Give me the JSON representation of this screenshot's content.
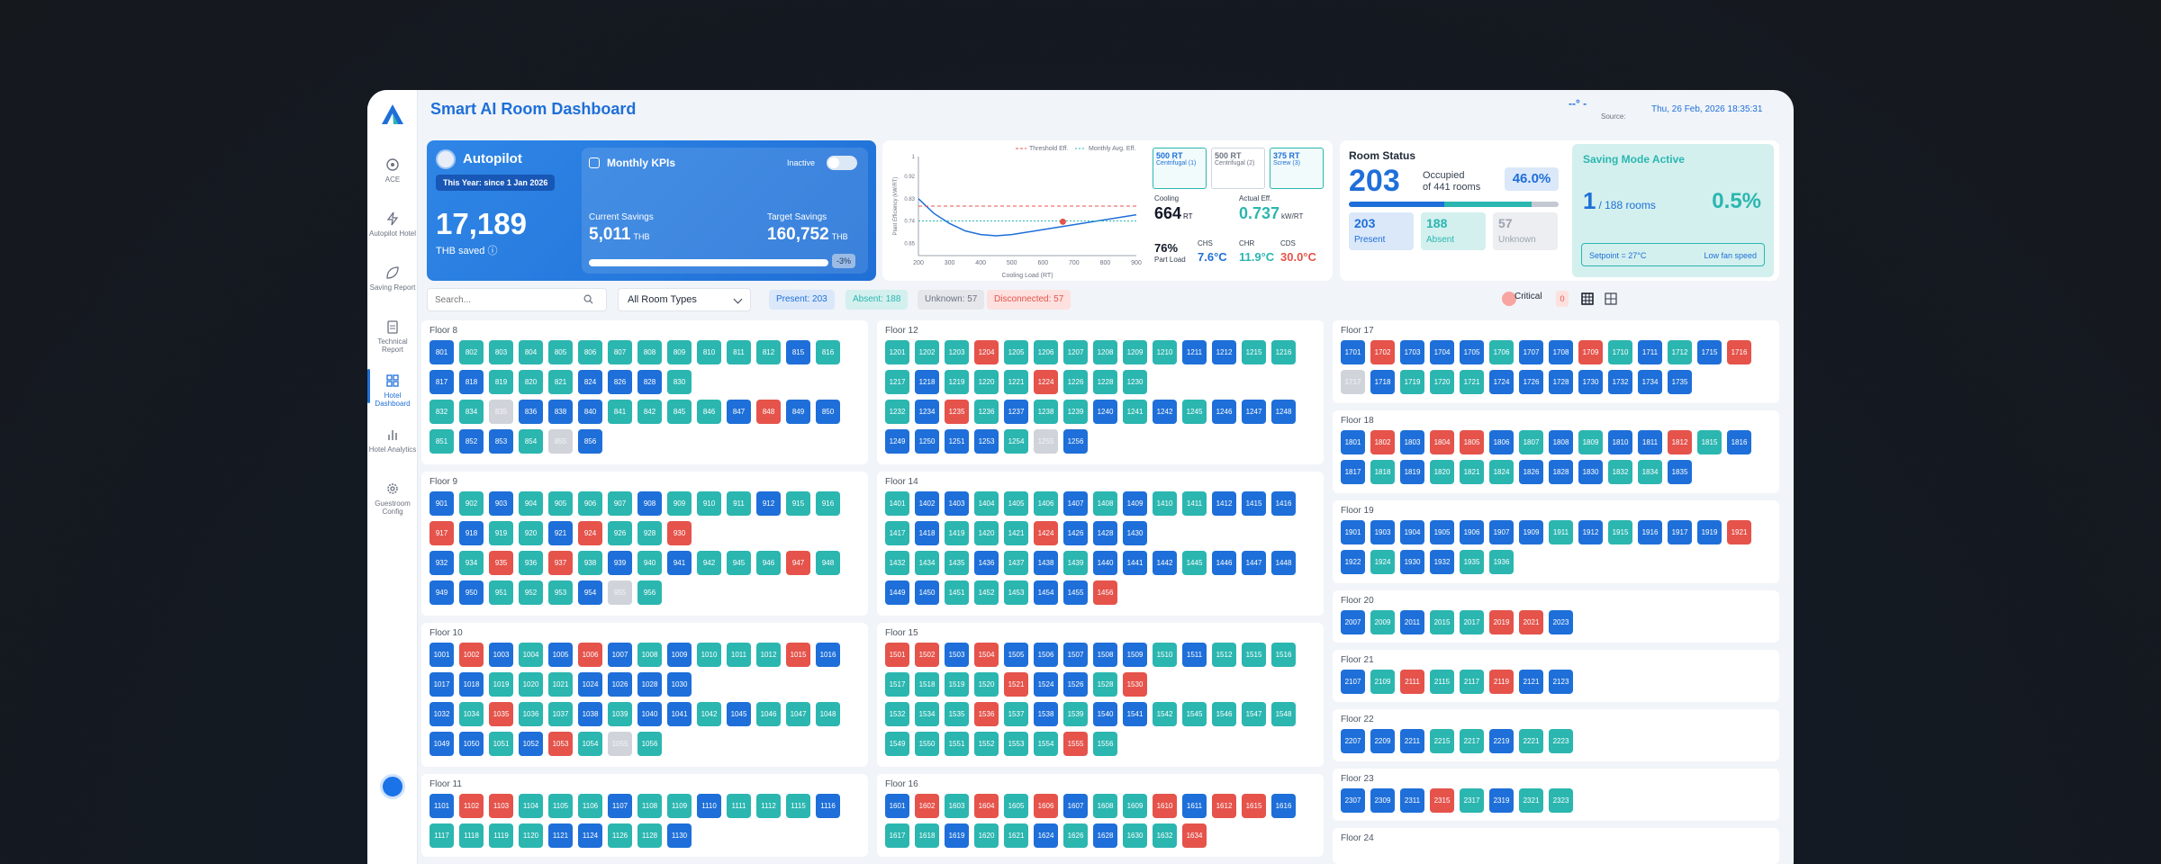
{
  "app": {
    "title": "Smart AI Room Dashboard"
  },
  "sidebar": {
    "items": [
      {
        "key": "ace",
        "label": "ACE",
        "icon": "ace-icon",
        "active": false
      },
      {
        "key": "autopilot-hotel",
        "label": "Autopilot Hotel",
        "icon": "lightning-icon",
        "active": false
      },
      {
        "key": "saving-report",
        "label": "Saving Report",
        "icon": "leaf-icon",
        "active": false
      },
      {
        "key": "technical-report",
        "label": "Technical Report",
        "icon": "clipboard-icon",
        "active": false
      },
      {
        "key": "hotel-dashboard",
        "label": "Hotel Dashboard",
        "icon": "grid-icon",
        "active": true
      },
      {
        "key": "hotel-analytics",
        "label": "Hotel Analytics",
        "icon": "bar-chart-icon",
        "active": false
      },
      {
        "key": "guestroom-config",
        "label": "Guestroom Config",
        "icon": "gear-icon",
        "active": false
      }
    ]
  },
  "header": {
    "status": "--° -",
    "source": "Source:",
    "datetime": "Thu, 26 Feb, 2026   18:35:31"
  },
  "autopilot": {
    "title": "Autopilot",
    "period": "This Year: since 1 Jan 2026",
    "saved_value": "17,189",
    "saved_label": "THB saved",
    "kpi": {
      "title": "Monthly KPIs",
      "toggle_label": "Inactive",
      "current_label": "Current Savings",
      "current_value": "5,011",
      "current_unit": "THB",
      "target_label": "Target Savings",
      "target_value": "160,752",
      "target_unit": "THB",
      "progress": 0.031,
      "badge": "-3%"
    }
  },
  "efficiency": {
    "legend_threshold": "Threshold Eff.",
    "legend_avg": "Monthly Avg. Eff.",
    "chillers": [
      {
        "rt": "500 RT",
        "type": "Centrifugal (1)",
        "selected": true
      },
      {
        "rt": "500 RT",
        "type": "Centrifugal (2)",
        "selected": false
      },
      {
        "rt": "375 RT",
        "type": "Screw (3)",
        "selected": true
      }
    ],
    "cooling_label": "Cooling",
    "cooling_value": "664",
    "cooling_unit": "RT",
    "actual_label": "Actual Eff.",
    "actual_value": "0.737",
    "actual_unit": "kW/RT",
    "partload_value": "76%",
    "partload_label": "Part Load",
    "chs_label": "CHS",
    "chs_value": "7.6°C",
    "chr_label": "CHR",
    "chr_value": "11.9°C",
    "cds_label": "CDS",
    "cds_value": "30.0°C"
  },
  "chart_data": {
    "type": "line",
    "title": "",
    "xlabel": "Cooling Load (RT)",
    "ylabel": "Plant Efficiency (kW/RT)",
    "x_ticks": [
      "200",
      "300",
      "400",
      "500",
      "600",
      "700",
      "800",
      "900"
    ],
    "y_ticks": [
      "1",
      "0.92",
      "0.83",
      "0.74",
      "0.65"
    ],
    "xlim": [
      200,
      900
    ],
    "ylim": [
      0.6,
      1.0
    ],
    "series": [
      {
        "name": "Efficiency curve",
        "x": [
          200,
          250,
          300,
          350,
          400,
          450,
          500,
          550,
          600,
          650,
          700,
          750,
          800,
          850,
          900
        ],
        "y": [
          0.83,
          0.77,
          0.73,
          0.7,
          0.685,
          0.68,
          0.685,
          0.695,
          0.705,
          0.715,
          0.725,
          0.735,
          0.745,
          0.755,
          0.765
        ]
      },
      {
        "name": "Threshold Eff.",
        "x": [
          200,
          900
        ],
        "y": [
          0.8,
          0.8
        ]
      },
      {
        "name": "Monthly Avg. Eff.",
        "x": [
          200,
          900
        ],
        "y": [
          0.74,
          0.74
        ]
      },
      {
        "name": "Current",
        "x": [
          664
        ],
        "y": [
          0.737
        ]
      }
    ]
  },
  "room_status": {
    "title": "Room Status",
    "occupied": "203",
    "occupied_text": "Occupied",
    "of_text": "of 441 rooms",
    "percent": "46.0%",
    "present": 203,
    "absent": 188,
    "unknown": 57,
    "present_label": "Present",
    "absent_label": "Absent",
    "unknown_label": "Unknown",
    "saving": {
      "title": "Saving Mode Active",
      "count": "1",
      "rooms_text": "/ 188 rooms",
      "percent": "0.5%",
      "setpoint": "Setpoint = 27°C",
      "fan": "Low fan speed"
    }
  },
  "filters": {
    "search_placeholder": "Search...",
    "room_type": "All Room Types",
    "present_chip": "Present: 203",
    "absent_chip": "Absent: 188",
    "unknown_chip": "Unknown: 57",
    "disconnected_chip": "Disconnected: 57",
    "critical_label": "Critical",
    "critical_count": "0"
  },
  "colors": {
    "P": "#1e6fd9",
    "A": "#2bb6b0",
    "D": "#e5534b",
    "U": "#d0d4da"
  },
  "floors": [
    {
      "name": "Floor 8",
      "rows": [
        "801P 802A 803A 804A 805A 806A 807A 808A 809A 810A 811A 812A 815P 816A",
        "817P 818P 819A 820A 821A 824P 826P 828P 830A",
        "832A 834A 835U 836P 838P 840P 841A 842A 845A 846A 847P 848D 849P 850P",
        "851A 852P 853P 854A 855U 856P"
      ]
    },
    {
      "name": "Floor 9",
      "rows": [
        "901P 902A 903P 904A 905A 906A 907A 908P 909A 910A 911A 912P 915A 916A",
        "917D 918P 919A 920A 921P 924D 926A 928A 930D",
        "932P 934A 935D 936A 937D 938A 939P 940A 941P 942A 945A 946A 947D 948A",
        "949P 950P 951A 952A 953A 954P 955U 956A"
      ]
    },
    {
      "name": "Floor 10",
      "rows": [
        "1001P 1002D 1003P 1004A 1005P 1006D 1007P 1008A 1009P 1010A 1011A 1012A 1015D 1016P",
        "1017P 1018P 1019A 1020A 1021A 1024P 1026P 1028P 1030P",
        "1032P 1034A 1035D 1036A 1037A 1038P 1039A 1040P 1041P 1042A 1045P 1046A 1047A 1048A",
        "1049P 1050P 1051A 1052P 1053D 1054A 1055U 1056A"
      ]
    },
    {
      "name": "Floor 11",
      "rows": [
        "1101P 1102D 1103D 1104A 1105A 1106A 1107P 1108A 1109A 1110P 1111A 1112A 1115A 1116P",
        "1117A 1118A 1119A 1120A 1121P 1124P 1126A 1128A 1130P"
      ]
    },
    {
      "name": "Floor 12",
      "rows": [
        "1201A 1202A 1203A 1204D 1205A 1206A 1207A 1208A 1209A 1210A 1211P 1212P 1215A 1216A",
        "1217A 1218P 1219A 1220A 1221A 1224D 1226A 1228A 1230A",
        "1232A 1234P 1235D 1236A 1237P 1238A 1239A 1240P 1241A 1242P 1245A 1246P 1247P 1248P",
        "1249P 1250P 1251P 1253P 1254A 1255U 1256P"
      ]
    },
    {
      "name": "Floor 14",
      "rows": [
        "1401A 1402P 1403P 1404A 1405A 1406A 1407P 1408A 1409P 1410A 1411A 1412P 1415P 1416P",
        "1417A 1418P 1419A 1420A 1421A 1424D 1426P 1428P 1430P",
        "1432A 1434A 1435A 1436P 1437A 1438P 1439A 1440P 1441P 1442P 1445A 1446P 1447P 1448P",
        "1449P 1450P 1451A 1452A 1453A 1454P 1455P 1456D"
      ]
    },
    {
      "name": "Floor 15",
      "rows": [
        "1501D 1502D 1503P 1504D 1505P 1506P 1507P 1508P 1509P 1510A 1511P 1512A 1515A 1516A",
        "1517A 1518A 1519A 1520A 1521D 1524P 1526P 1528A 1530D",
        "1532A 1534A 1535A 1536D 1537A 1538P 1539A 1540P 1541P 1542A 1545A 1546A 1547A 1548A",
        "1549A 1550A 1551A 1552A 1553A 1554A 1555D 1556A"
      ]
    },
    {
      "name": "Floor 16",
      "rows": [
        "1601P 1602D 1603A 1604D 1605A 1606D 1607P 1608A 1609A 1610D 1611P 1612D 1615D 1616P",
        "1617A 1618A 1619P 1620A 1621A 1624P 1626A 1628P 1630A 1632A 1634D"
      ]
    },
    {
      "name": "Floor 17",
      "rows": [
        "1701P 1702D 1703P 1704P 1705P 1706A 1707P 1708P 1709D 1710A 1711P 1712A 1715P 1716D",
        "1717U 1718P 1719A 1720A 1721A 1724P 1726P 1728P 1730P 1732P 1734P 1735P"
      ]
    },
    {
      "name": "Floor 18",
      "rows": [
        "1801P 1802D 1803P 1804D 1805D 1806P 1807A 1808P 1809A 1810P 1811P 1812D 1815A 1816P",
        "1817P 1818A 1819P 1820A 1821A 1824A 1826P 1828P 1830P 1832A 1834A 1835P"
      ]
    },
    {
      "name": "Floor 19",
      "rows": [
        "1901P 1903P 1904P 1905P 1906P 1907P 1909P 1911A 1912P 1915A 1916P 1917P 1919P 1921D",
        "1922P 1924A 1930P 1932P 1935A 1936A"
      ]
    },
    {
      "name": "Floor 20",
      "rows": [
        "2007P 2009A 2011P 2015A 2017A 2019D 2021D 2023P"
      ]
    },
    {
      "name": "Floor 21",
      "rows": [
        "2107P 2109A 2111D 2115A 2117A 2119D 2121P 2123P"
      ]
    },
    {
      "name": "Floor 22",
      "rows": [
        "2207P 2209P 2211P 2215A 2217A 2219P 2221A 2223A"
      ]
    },
    {
      "name": "Floor 23",
      "rows": [
        "2307P 2309P 2311P 2315D 2317A 2319P 2321A 2323A"
      ]
    },
    {
      "name": "Floor 24",
      "rows": []
    }
  ]
}
